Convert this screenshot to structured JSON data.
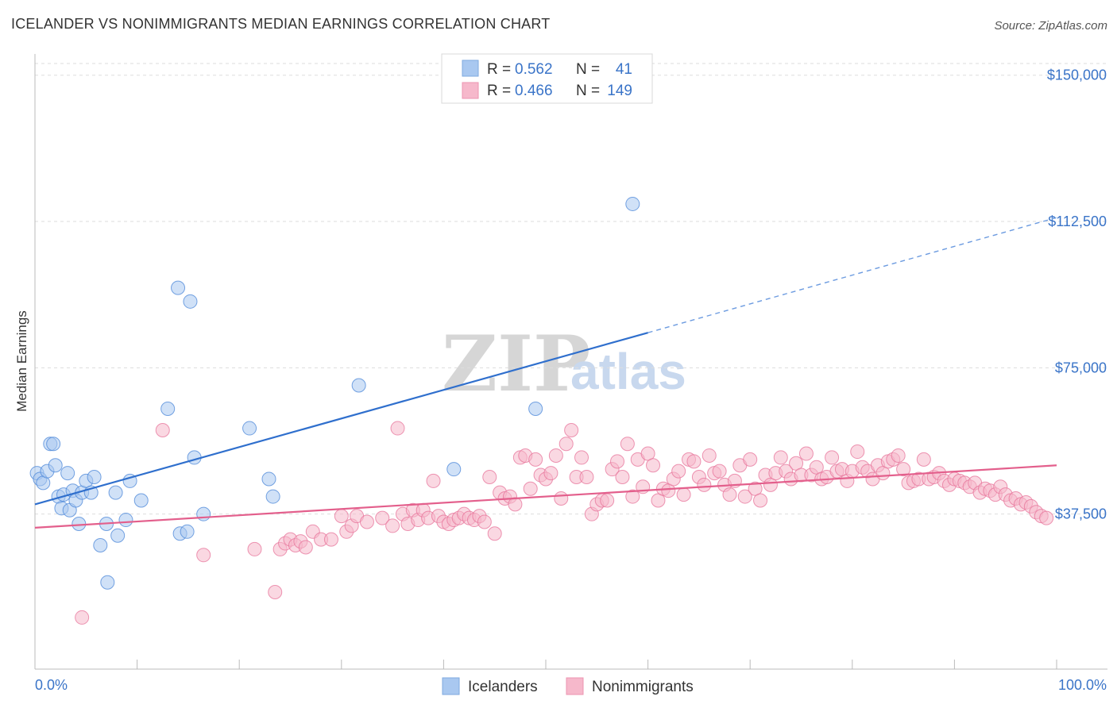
{
  "header": {
    "title": "ICELANDER VS NONIMMIGRANTS MEDIAN EARNINGS CORRELATION CHART",
    "source": "Source: ZipAtlas.com"
  },
  "watermark": {
    "part1": "ZIP",
    "part2": "atlas"
  },
  "legend": {
    "rows": [
      {
        "r_label": "R =",
        "r_value": "0.562",
        "n_label": "N =",
        "n_value": "41",
        "color": "#a9c8f0"
      },
      {
        "r_label": "R =",
        "r_value": "0.466",
        "n_label": "N =",
        "n_value": "149",
        "color": "#f6b8cb"
      }
    ]
  },
  "bottom_legend": [
    {
      "label": "Icelanders",
      "color": "#a9c8f0"
    },
    {
      "label": "Nonimmigrants",
      "color": "#f6b8cb"
    }
  ],
  "chart_data": {
    "type": "scatter",
    "title": "ICELANDER VS NONIMMIGRANTS MEDIAN EARNINGS CORRELATION CHART",
    "xlabel": "",
    "ylabel": "Median Earnings",
    "xlim": [
      0,
      100
    ],
    "ylim": [
      0,
      153000
    ],
    "x_tick_labels": [
      "0.0%",
      "100.0%"
    ],
    "y_ticks": [
      37500,
      75000,
      112500,
      150000
    ],
    "y_tick_labels": [
      "$37,500",
      "$75,000",
      "$112,500",
      "$150,000"
    ],
    "grid": true,
    "series": [
      {
        "name": "Icelanders",
        "color": "#4a86d8",
        "fill": "#a9c8f0",
        "trend": {
          "x0": 0,
          "y0": 40000,
          "x1": 60,
          "y1": 84000,
          "dash_to_x": 100,
          "dash_to_y": 113500
        },
        "points": [
          [
            0.2,
            48000
          ],
          [
            0.5,
            46500
          ],
          [
            0.8,
            45500
          ],
          [
            1.2,
            48500
          ],
          [
            1.5,
            55500
          ],
          [
            1.8,
            55500
          ],
          [
            2.0,
            50000
          ],
          [
            2.3,
            42000
          ],
          [
            2.6,
            39000
          ],
          [
            2.8,
            42500
          ],
          [
            3.2,
            48000
          ],
          [
            3.4,
            38500
          ],
          [
            3.7,
            43500
          ],
          [
            4.0,
            41000
          ],
          [
            4.3,
            35000
          ],
          [
            4.6,
            43000
          ],
          [
            5.0,
            46000
          ],
          [
            5.5,
            43000
          ],
          [
            5.8,
            47000
          ],
          [
            6.4,
            29500
          ],
          [
            7.0,
            35000
          ],
          [
            7.1,
            20000
          ],
          [
            7.9,
            43000
          ],
          [
            8.1,
            32000
          ],
          [
            8.9,
            36000
          ],
          [
            9.3,
            46000
          ],
          [
            10.4,
            41000
          ],
          [
            13.0,
            64500
          ],
          [
            14.0,
            95500
          ],
          [
            14.2,
            32500
          ],
          [
            14.9,
            33000
          ],
          [
            15.2,
            92000
          ],
          [
            15.6,
            52000
          ],
          [
            16.5,
            37500
          ],
          [
            21.0,
            59500
          ],
          [
            22.9,
            46500
          ],
          [
            23.3,
            42000
          ],
          [
            31.7,
            70500
          ],
          [
            41.0,
            49000
          ],
          [
            49.0,
            64500
          ],
          [
            58.5,
            117000
          ]
        ]
      },
      {
        "name": "Nonimmigrants",
        "color": "#e7739a",
        "fill": "#f6b8cb",
        "trend": {
          "x0": 0,
          "y0": 34000,
          "x1": 100,
          "y1": 50000
        },
        "points": [
          [
            4.6,
            11000
          ],
          [
            12.5,
            59000
          ],
          [
            16.5,
            27000
          ],
          [
            21.5,
            28500
          ],
          [
            23.5,
            17500
          ],
          [
            24.0,
            28500
          ],
          [
            24.5,
            30000
          ],
          [
            25.0,
            31000
          ],
          [
            25.5,
            29500
          ],
          [
            26.0,
            30500
          ],
          [
            26.5,
            29000
          ],
          [
            27.2,
            33000
          ],
          [
            28.0,
            31000
          ],
          [
            29.0,
            31000
          ],
          [
            30.0,
            37000
          ],
          [
            30.5,
            33000
          ],
          [
            31.0,
            34500
          ],
          [
            31.5,
            37000
          ],
          [
            32.5,
            35500
          ],
          [
            34.0,
            36500
          ],
          [
            35.0,
            34500
          ],
          [
            35.5,
            59500
          ],
          [
            36.0,
            37500
          ],
          [
            36.5,
            35000
          ],
          [
            37.0,
            38500
          ],
          [
            37.5,
            36000
          ],
          [
            38.0,
            38500
          ],
          [
            38.5,
            36500
          ],
          [
            39.0,
            46000
          ],
          [
            39.5,
            37000
          ],
          [
            40.0,
            35500
          ],
          [
            40.5,
            35000
          ],
          [
            41.0,
            36000
          ],
          [
            41.5,
            36500
          ],
          [
            42.0,
            37500
          ],
          [
            42.5,
            36500
          ],
          [
            43.0,
            36000
          ],
          [
            43.5,
            37000
          ],
          [
            44.0,
            35500
          ],
          [
            44.5,
            47000
          ],
          [
            45.0,
            32500
          ],
          [
            45.5,
            43000
          ],
          [
            46.0,
            41500
          ],
          [
            46.5,
            42000
          ],
          [
            47.0,
            40000
          ],
          [
            47.5,
            52000
          ],
          [
            48.0,
            52500
          ],
          [
            48.5,
            44000
          ],
          [
            49.0,
            51500
          ],
          [
            49.5,
            47500
          ],
          [
            50.0,
            46500
          ],
          [
            50.5,
            48000
          ],
          [
            51.0,
            52500
          ],
          [
            51.5,
            41500
          ],
          [
            52.0,
            55500
          ],
          [
            52.5,
            59000
          ],
          [
            53.0,
            47000
          ],
          [
            53.5,
            52000
          ],
          [
            54.0,
            47000
          ],
          [
            54.5,
            37500
          ],
          [
            55.0,
            40000
          ],
          [
            55.5,
            41000
          ],
          [
            56.0,
            41000
          ],
          [
            56.5,
            49000
          ],
          [
            57.0,
            51000
          ],
          [
            57.5,
            47000
          ],
          [
            58.0,
            55500
          ],
          [
            58.5,
            42000
          ],
          [
            59.0,
            51500
          ],
          [
            59.5,
            44500
          ],
          [
            60.0,
            53000
          ],
          [
            60.5,
            50000
          ],
          [
            61.0,
            41000
          ],
          [
            61.5,
            44000
          ],
          [
            62.0,
            43500
          ],
          [
            62.5,
            46500
          ],
          [
            63.0,
            48500
          ],
          [
            63.5,
            42500
          ],
          [
            64.0,
            51500
          ],
          [
            64.5,
            51000
          ],
          [
            65.0,
            47000
          ],
          [
            65.5,
            45000
          ],
          [
            66.0,
            52500
          ],
          [
            66.5,
            48000
          ],
          [
            67.0,
            48500
          ],
          [
            67.5,
            45000
          ],
          [
            68.0,
            42500
          ],
          [
            68.5,
            46000
          ],
          [
            69.0,
            50000
          ],
          [
            69.5,
            42000
          ],
          [
            70.0,
            51500
          ],
          [
            70.5,
            44000
          ],
          [
            71.0,
            41000
          ],
          [
            71.5,
            47500
          ],
          [
            72.0,
            45000
          ],
          [
            72.5,
            48000
          ],
          [
            73.0,
            52000
          ],
          [
            73.5,
            48500
          ],
          [
            74.0,
            46500
          ],
          [
            74.5,
            50500
          ],
          [
            75.0,
            47500
          ],
          [
            75.5,
            53000
          ],
          [
            76.0,
            47500
          ],
          [
            76.5,
            49500
          ],
          [
            77.0,
            46500
          ],
          [
            77.5,
            47000
          ],
          [
            78.0,
            52000
          ],
          [
            78.5,
            48500
          ],
          [
            79.0,
            49000
          ],
          [
            79.5,
            46000
          ],
          [
            80.0,
            48500
          ],
          [
            80.5,
            53500
          ],
          [
            81.0,
            49500
          ],
          [
            81.5,
            48500
          ],
          [
            82.0,
            46500
          ],
          [
            82.5,
            50000
          ],
          [
            83.0,
            48000
          ],
          [
            83.5,
            51000
          ],
          [
            84.0,
            51500
          ],
          [
            84.5,
            52500
          ],
          [
            85.0,
            49000
          ],
          [
            85.5,
            45500
          ],
          [
            86.0,
            46000
          ],
          [
            86.5,
            46500
          ],
          [
            87.0,
            51500
          ],
          [
            87.5,
            46500
          ],
          [
            88.0,
            47000
          ],
          [
            88.5,
            48000
          ],
          [
            89.0,
            46000
          ],
          [
            89.5,
            45000
          ],
          [
            90.0,
            46500
          ],
          [
            90.5,
            46000
          ],
          [
            91.0,
            45500
          ],
          [
            91.5,
            44500
          ],
          [
            92.0,
            45500
          ],
          [
            92.5,
            43000
          ],
          [
            93.0,
            44000
          ],
          [
            93.5,
            43500
          ],
          [
            94.0,
            42500
          ],
          [
            94.5,
            44500
          ],
          [
            95.0,
            42500
          ],
          [
            95.5,
            41000
          ],
          [
            96.0,
            41500
          ],
          [
            96.5,
            40000
          ],
          [
            97.0,
            40500
          ],
          [
            97.5,
            39500
          ],
          [
            98.0,
            38000
          ],
          [
            98.5,
            37000
          ],
          [
            99.0,
            36500
          ]
        ]
      }
    ]
  }
}
